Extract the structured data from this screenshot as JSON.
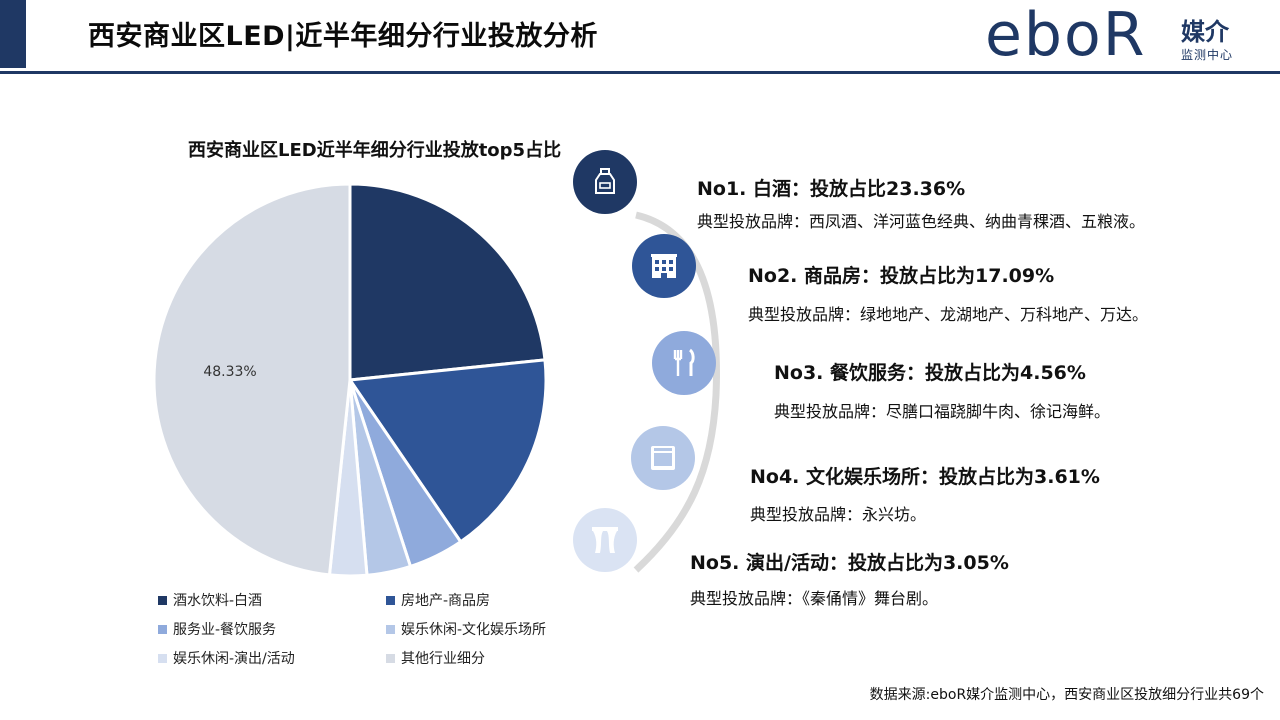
{
  "header": {
    "title": "西安商业区LED|近半年细分行业投放分析",
    "logo_word": "eboR",
    "logo_cn": "媒介",
    "logo_sub": "监测中心"
  },
  "colors": {
    "navy": "#1f3864",
    "series": [
      "#1f3864",
      "#2f5597",
      "#8faadc",
      "#b4c7e7",
      "#d6dff0",
      "#d6dbe4"
    ]
  },
  "chart_data": {
    "type": "pie",
    "title": "西安商业区LED近半年细分行业投放top5占比",
    "slices": [
      {
        "label": "酒水饮料-白酒",
        "value": 23.36
      },
      {
        "label": "房地产-商品房",
        "value": 17.09
      },
      {
        "label": "服务业-餐饮服务",
        "value": 4.56
      },
      {
        "label": "娱乐休闲-文化娱乐场所",
        "value": 3.61
      },
      {
        "label": "娱乐休闲-演出/活动",
        "value": 3.05
      },
      {
        "label": "其他行业细分",
        "value": 48.33
      }
    ],
    "data_labels": [
      {
        "slice": "其他行业细分",
        "text": "48.33%"
      }
    ],
    "legend_position": "bottom"
  },
  "rankings": [
    {
      "heading": "No1. 白酒：投放占比23.36%",
      "brands": "典型投放品牌：西凤酒、洋河蓝色经典、纳曲青稞酒、五粮液。",
      "icon": "liquor-bottle-icon"
    },
    {
      "heading": "No2. 商品房：投放占比为17.09%",
      "brands": "典型投放品牌：绿地地产、龙湖地产、万科地产、万达。",
      "icon": "building-icon"
    },
    {
      "heading": "No3. 餐饮服务：投放占比为4.56%",
      "brands": "典型投放品牌：尽膳口福跷脚牛肉、徐记海鲜。",
      "icon": "fork-knife-icon"
    },
    {
      "heading": "No4. 文化娱乐场所：投放占比为3.61%",
      "brands": "典型投放品牌：永兴坊。",
      "icon": "cabinet-icon"
    },
    {
      "heading": "No5. 演出/活动：投放占比为3.05%",
      "brands": "典型投放品牌：《秦俑情》舞台剧。",
      "icon": "stage-curtain-icon"
    }
  ],
  "footnote": "数据来源:eboR媒介监测中心，西安商业区投放细分行业共69个"
}
